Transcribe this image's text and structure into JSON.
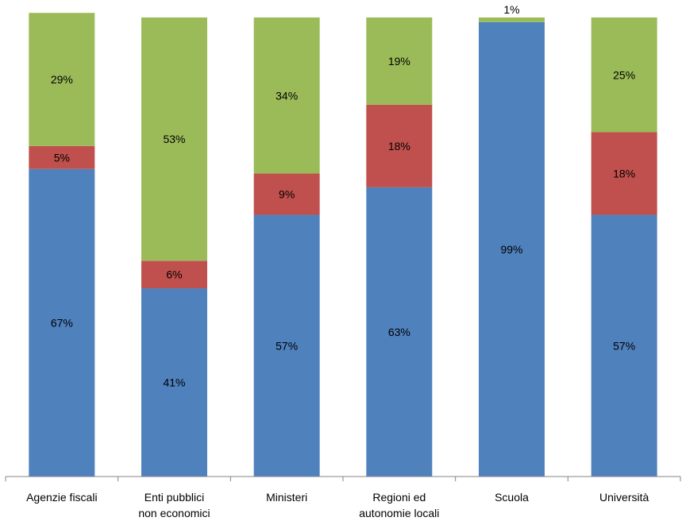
{
  "chart_data": {
    "type": "bar",
    "stacked": true,
    "title": "",
    "xlabel": "",
    "ylabel": "",
    "ylim": [
      0,
      100
    ],
    "grid": false,
    "legend": "none",
    "categories": [
      [
        "Agenzie fiscali"
      ],
      [
        "Enti pubblici",
        "non economici"
      ],
      [
        "Ministeri"
      ],
      [
        "Regioni ed",
        "autonomie locali"
      ],
      [
        "Scuola"
      ],
      [
        "Università"
      ]
    ],
    "series": [
      {
        "color": "#4f81bd",
        "values": [
          67,
          41,
          57,
          63,
          99,
          57
        ],
        "labels": [
          "67%",
          "41%",
          "57%",
          "63%",
          "99%",
          "57%"
        ]
      },
      {
        "color": "#c0504d",
        "values": [
          5,
          6,
          9,
          18,
          0,
          18
        ],
        "labels": [
          "5%",
          "6%",
          "9%",
          "18%",
          "",
          "18%"
        ]
      },
      {
        "color": "#9bbb59",
        "values": [
          29,
          53,
          34,
          19,
          1,
          25
        ],
        "labels": [
          "29%",
          "53%",
          "34%",
          "19%",
          "1%",
          "25%"
        ]
      }
    ]
  }
}
